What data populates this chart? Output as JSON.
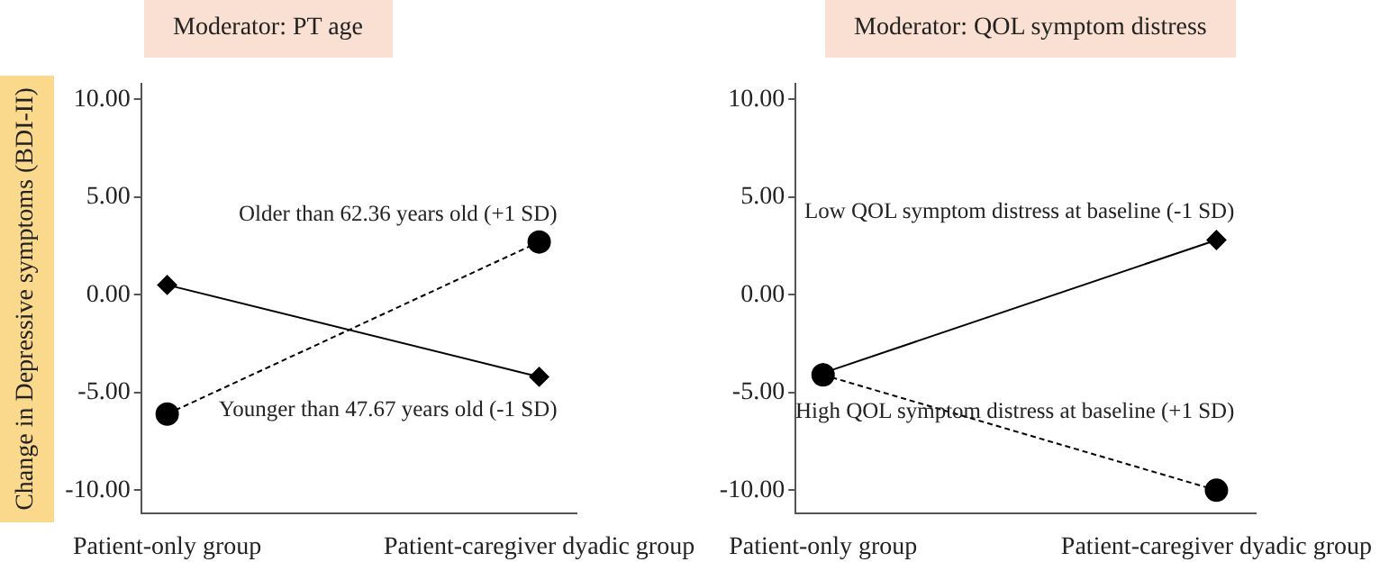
{
  "chart_data": [
    {
      "type": "line",
      "title": "Moderator: PT age",
      "ylabel": "Change in Depressive symptoms (BDI-II)",
      "categories": [
        "Patient-only group",
        "Patient-caregiver dyadic group"
      ],
      "ylim": [
        -11.2,
        10.8
      ],
      "yticks": [
        {
          "value": -10,
          "label": "-10.00"
        },
        {
          "value": -5,
          "label": "-5.00"
        },
        {
          "value": 0,
          "label": "0.00"
        },
        {
          "value": 5,
          "label": "5.00"
        },
        {
          "value": 10,
          "label": "10.00"
        }
      ],
      "grid": false,
      "legend": false,
      "series": [
        {
          "name": "Younger than 47.67 years old (-1 SD)",
          "color": "#000000",
          "values": [
            0.5,
            -4.2
          ],
          "marker": "diamond",
          "line_style": "solid"
        },
        {
          "name": "Older than 62.36 years old (+1 SD)",
          "color": "#000000",
          "values": [
            -6.1,
            2.7
          ],
          "marker": "circle",
          "line_style": "dashed"
        }
      ]
    },
    {
      "type": "line",
      "title": "Moderator: QOL symptom distress",
      "categories": [
        "Patient-only group",
        "Patient-caregiver dyadic group"
      ],
      "ylim": [
        -11.2,
        10.8
      ],
      "yticks": [
        {
          "value": -10,
          "label": "-10.00"
        },
        {
          "value": -5,
          "label": "-5.00"
        },
        {
          "value": 0,
          "label": "0.00"
        },
        {
          "value": 5,
          "label": "5.00"
        },
        {
          "value": 10,
          "label": "10.00"
        }
      ],
      "grid": false,
      "legend": false,
      "series": [
        {
          "name": "Low QOL symptom distress at baseline (-1 SD)",
          "color": "#000000",
          "values": [
            -4.0,
            2.8
          ],
          "marker": "diamond",
          "line_style": "solid"
        },
        {
          "name": "High QOL symptom distress at baseline (+1 SD)",
          "color": "#000000",
          "values": [
            -4.1,
            -10.0
          ],
          "marker": "circle",
          "line_style": "dashed"
        }
      ]
    }
  ]
}
